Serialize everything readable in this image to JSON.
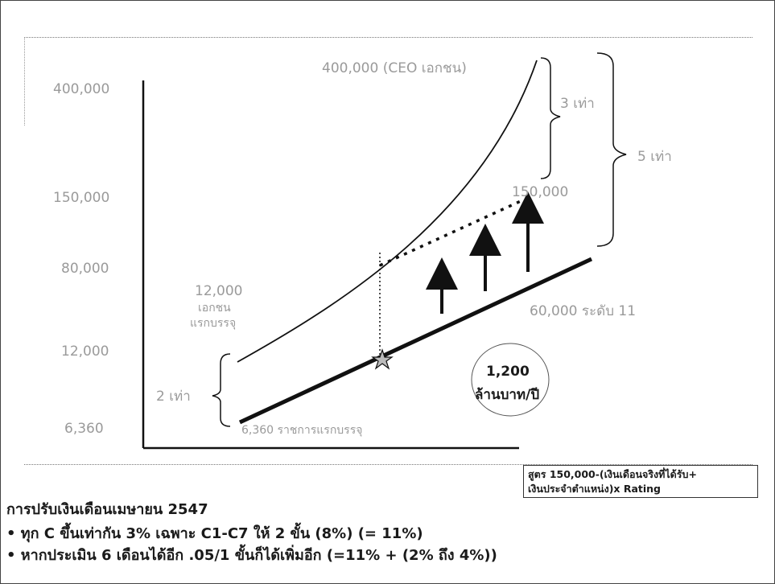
{
  "y_axis": {
    "ticks": [
      "400,000",
      "150,000",
      "80,000",
      "12,000",
      "6,360"
    ]
  },
  "curve_labels": {
    "ceo_top": "400,000 (CEO เอกชน)",
    "private_start": [
      "12,000",
      "เอกชน",
      "แรกบรรจุ"
    ],
    "target": "150,000",
    "gov_level11": "60,000 ระดับ 11",
    "gov_start": "6,360 ราชการแรกบรรจุ"
  },
  "brackets": {
    "three_times": "3 เท่า",
    "five_times": "5 เท่า",
    "two_times": "2 เท่า"
  },
  "budget": {
    "amount": "1,200",
    "unit": "ล้านบาท/ปี"
  },
  "formula": {
    "line1": "สูตร 150,000-(เงินเดือนจริงที่ได้รับ+",
    "line2": "เงินประจำตำแหน่ง)x Rating"
  },
  "notes": {
    "title": "การปรับเงินเดือนเมษายน 2547",
    "bullets": [
      "• ทุก C ขึ้นเท่ากัน 3%  เฉพาะ C1-C7 ให้ 2 ขั้น (8%) (= 11%)",
      "• หากประเมิน 6 เดือนได้อีก .05/1 ขั้นก็ได้เพิ่มอีก (=11% + (2% ถึง 4%))"
    ]
  },
  "colors": {
    "gray_text": "#9a9a9a",
    "line": "#111111"
  }
}
